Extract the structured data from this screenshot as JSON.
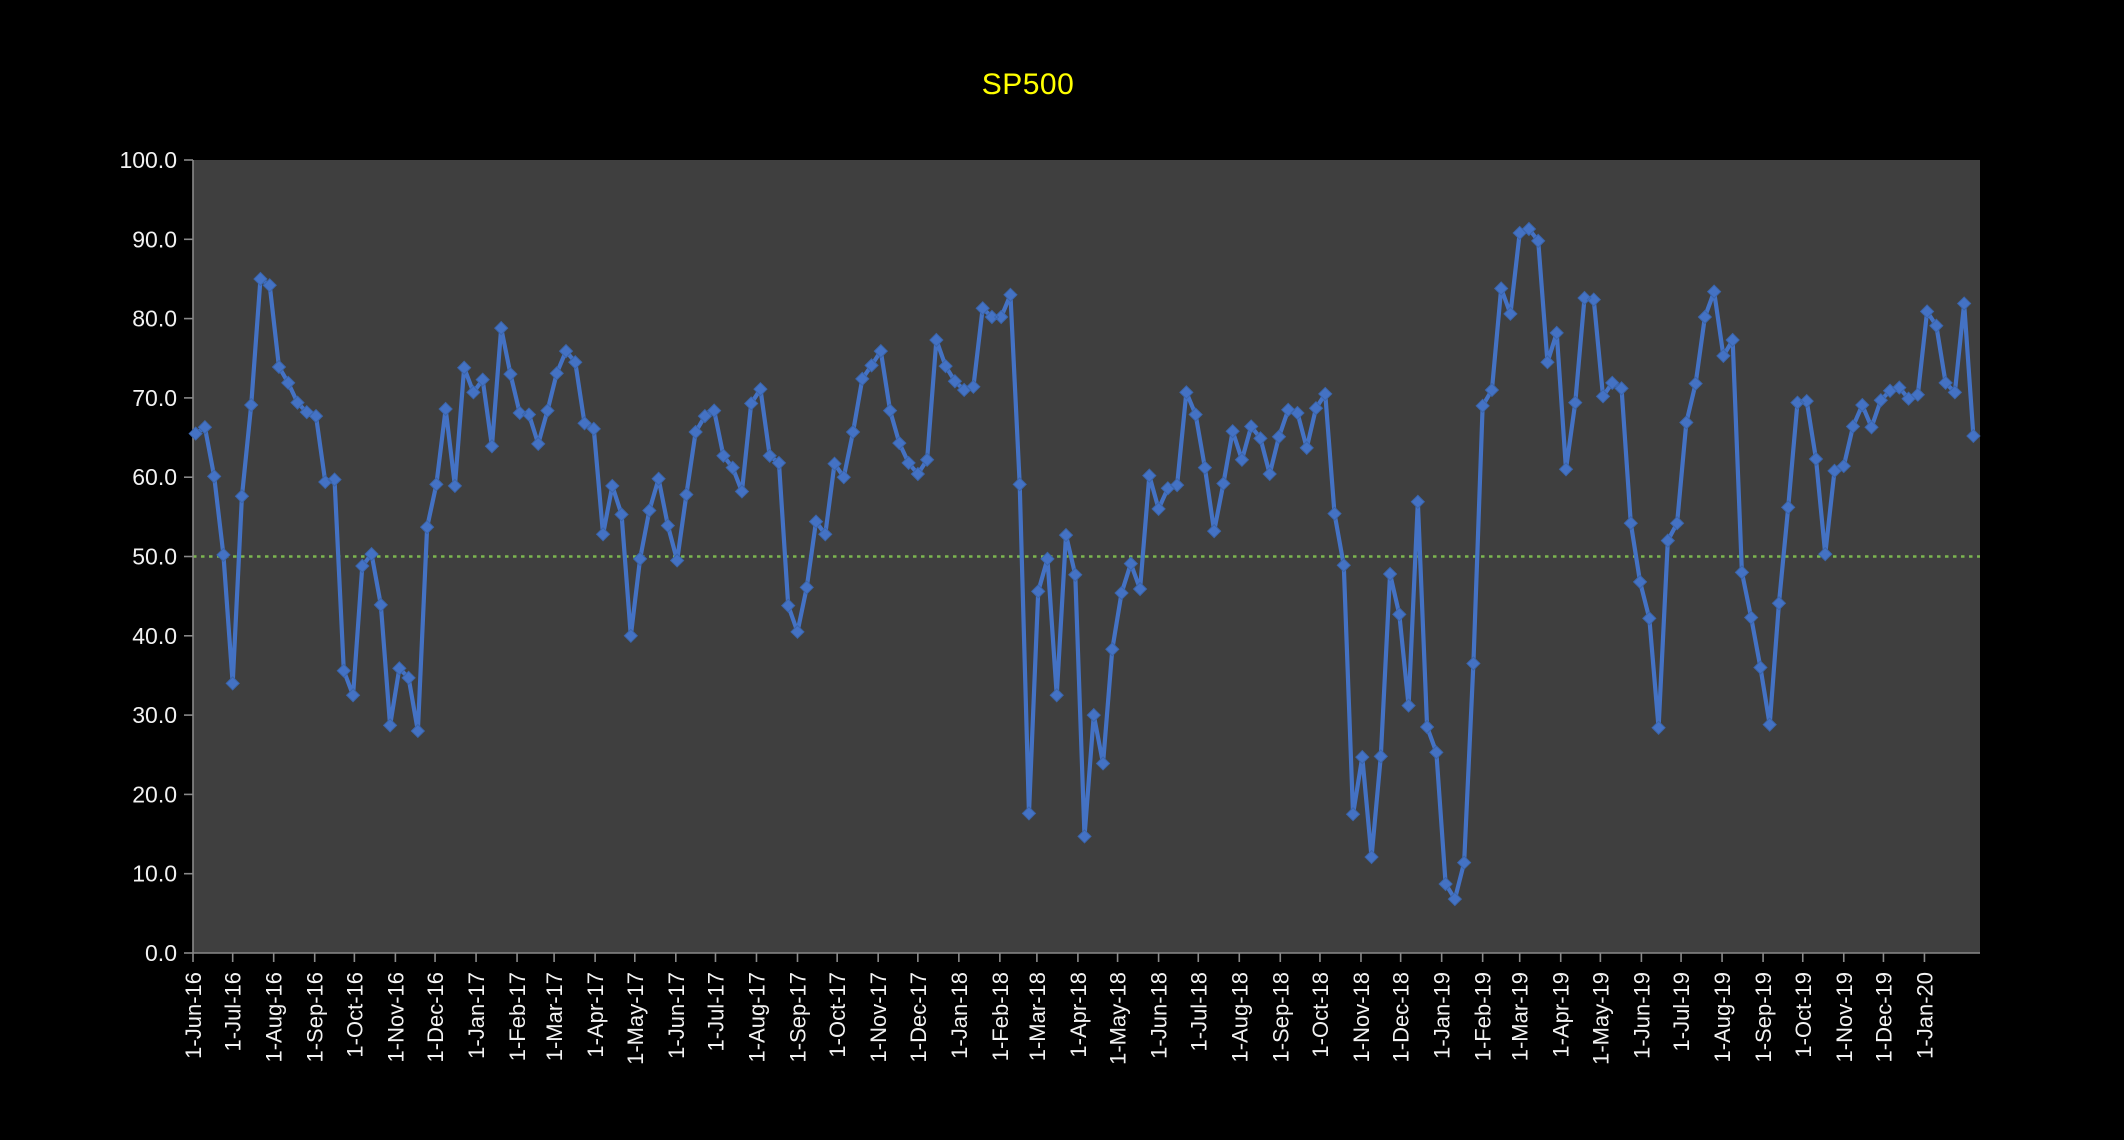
{
  "chart_data": {
    "type": "line",
    "title": "SP500",
    "x_axis": {
      "start_date": "2016-06-03",
      "interval_days": 7,
      "tick_labels": [
        "1-Jun-16",
        "1-Jul-16",
        "1-Aug-16",
        "1-Sep-16",
        "1-Oct-16",
        "1-Nov-16",
        "1-Dec-16",
        "1-Jan-17",
        "1-Feb-17",
        "1-Mar-17",
        "1-Apr-17",
        "1-May-17",
        "1-Jun-17",
        "1-Jul-17",
        "1-Aug-17",
        "1-Sep-17",
        "1-Oct-17",
        "1-Nov-17",
        "1-Dec-17",
        "1-Jan-18",
        "1-Feb-18",
        "1-Mar-18",
        "1-Apr-18",
        "1-May-18",
        "1-Jun-18",
        "1-Jul-18",
        "1-Aug-18",
        "1-Sep-18",
        "1-Oct-18",
        "1-Nov-18",
        "1-Dec-18",
        "1-Jan-19",
        "1-Feb-19",
        "1-Mar-19",
        "1-Apr-19",
        "1-May-19",
        "1-Jun-19",
        "1-Jul-19",
        "1-Aug-19",
        "1-Sep-19",
        "1-Oct-19",
        "1-Nov-19",
        "1-Dec-19",
        "1-Jan-20"
      ]
    },
    "y_axis": {
      "min": 0,
      "max": 100,
      "tick_labels": [
        "0.0",
        "10.0",
        "20.0",
        "30.0",
        "40.0",
        "50.0",
        "60.0",
        "70.0",
        "80.0",
        "90.0",
        "100.0"
      ]
    },
    "reference_line": {
      "y": 50,
      "style": "dotted"
    },
    "grid": "off",
    "legend": "none",
    "series": [
      {
        "name": "SP500",
        "marker": "diamond",
        "values": [
          65.5,
          66.3,
          60.1,
          50.2,
          34.0,
          57.6,
          69.1,
          85.0,
          84.2,
          73.9,
          71.9,
          69.4,
          68.2,
          67.7,
          59.4,
          59.7,
          35.6,
          32.5,
          48.8,
          50.3,
          43.9,
          28.7,
          35.9,
          34.7,
          28.0,
          53.7,
          59.1,
          68.6,
          58.9,
          73.8,
          70.7,
          72.3,
          63.9,
          78.8,
          73.0,
          68.1,
          67.9,
          64.2,
          68.4,
          73.1,
          75.9,
          74.5,
          66.8,
          66.1,
          52.8,
          58.9,
          55.3,
          40.0,
          49.7,
          55.8,
          59.8,
          53.9,
          49.5,
          57.8,
          65.7,
          67.7,
          68.4,
          62.7,
          61.2,
          58.2,
          69.3,
          71.1,
          62.7,
          61.8,
          43.8,
          40.5,
          46.1,
          54.4,
          52.8,
          61.7,
          60.0,
          65.7,
          72.4,
          74.1,
          75.9,
          68.4,
          64.3,
          61.8,
          60.4,
          62.2,
          77.3,
          74.0,
          72.1,
          71.0,
          71.4,
          81.3,
          80.2,
          80.2,
          83.0,
          59.1,
          17.6,
          45.6,
          49.7,
          32.5,
          52.7,
          47.7,
          14.7,
          30.0,
          23.9,
          38.3,
          45.4,
          49.1,
          45.9,
          60.2,
          56.0,
          58.6,
          59.0,
          70.7,
          67.9,
          61.2,
          53.2,
          59.2,
          65.8,
          62.2,
          66.4,
          64.9,
          60.4,
          65.1,
          68.5,
          68.1,
          63.7,
          68.7,
          70.5,
          55.4,
          48.9,
          17.5,
          24.7,
          12.1,
          24.8,
          47.8,
          42.7,
          31.2,
          56.9,
          28.5,
          25.3,
          8.7,
          6.8,
          11.4,
          36.5,
          69.0,
          71.0,
          83.8,
          80.6,
          90.8,
          91.3,
          89.8,
          74.5,
          78.2,
          61.0,
          69.4,
          82.6,
          82.4,
          70.2,
          71.9,
          71.2,
          54.2,
          46.8,
          42.2,
          28.4,
          52.0,
          54.2,
          66.9,
          71.8,
          80.2,
          83.4,
          75.3,
          77.3,
          48.0,
          42.3,
          36.0,
          28.8,
          44.1,
          56.2,
          69.4,
          69.6,
          62.3,
          50.3,
          60.8,
          61.4,
          66.4,
          69.1,
          66.3,
          69.7,
          70.9,
          71.3,
          69.9,
          70.4,
          80.9,
          79.1,
          71.9,
          70.7,
          81.9,
          65.2
        ]
      }
    ],
    "colors": {
      "title": "#FFFF00",
      "series_line": "#4472C4",
      "marker_fill": "#4472C4",
      "marker_edge": "#3A65AC",
      "reference_line": "#7CB650",
      "plot_background": "#3F3F3F",
      "page_background": "#000000",
      "axis": "#898989",
      "tick_label": "#F2F2F2"
    }
  }
}
